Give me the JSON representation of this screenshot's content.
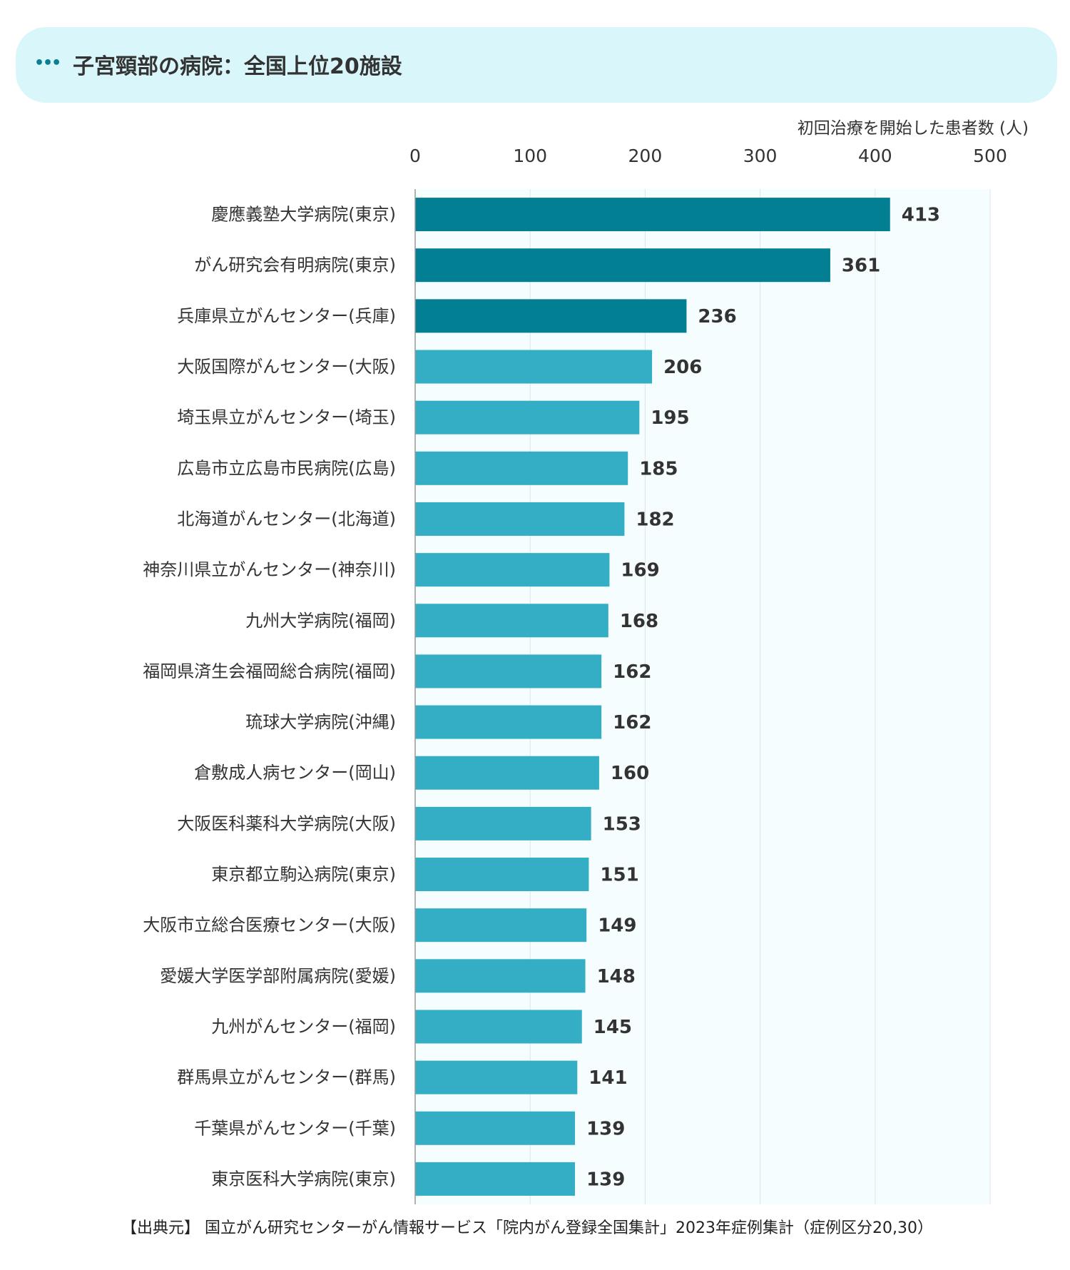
{
  "header": {
    "icon": "ellipsis-icon",
    "title": "子宮頸部の病院：全国上位20施設"
  },
  "source_text": "【出典元】 国立がん研究センターがん情報サービス「院内がん登録全国集計」2023年症例集計（症例区分20,30）",
  "chart_data": {
    "type": "bar",
    "orientation": "horizontal",
    "xlabel": "初回治療を開始した患者数 (人)",
    "xlim": [
      0,
      500
    ],
    "xticks": [
      0,
      100,
      200,
      300,
      400,
      500
    ],
    "grid": true,
    "categories": [
      "慶應義塾大学病院(東京)",
      "がん研究会有明病院(東京)",
      "兵庫県立がんセンター(兵庫)",
      "大阪国際がんセンター(大阪)",
      "埼玉県立がんセンター(埼玉)",
      "広島市立広島市民病院(広島)",
      "北海道がんセンター(北海道)",
      "神奈川県立がんセンター(神奈川)",
      "九州大学病院(福岡)",
      "福岡県済生会福岡総合病院(福岡)",
      "琉球大学病院(沖縄)",
      "倉敷成人病センター(岡山)",
      "大阪医科薬科大学病院(大阪)",
      "東京都立駒込病院(東京)",
      "大阪市立総合医療センター(大阪)",
      "愛媛大学医学部附属病院(愛媛)",
      "九州がんセンター(福岡)",
      "群馬県立がんセンター(群馬)",
      "千葉県がんセンター(千葉)",
      "東京医科大学病院(東京)"
    ],
    "values": [
      413,
      361,
      236,
      206,
      195,
      185,
      182,
      169,
      168,
      162,
      162,
      160,
      153,
      151,
      149,
      148,
      145,
      141,
      139,
      139
    ],
    "highlight_top_n": 3,
    "colors": {
      "highlight": "#027f93",
      "bar": "#33aec4",
      "plot_background": "#f5fdff",
      "grid": "#dde6ea",
      "axis": "#999999"
    }
  }
}
